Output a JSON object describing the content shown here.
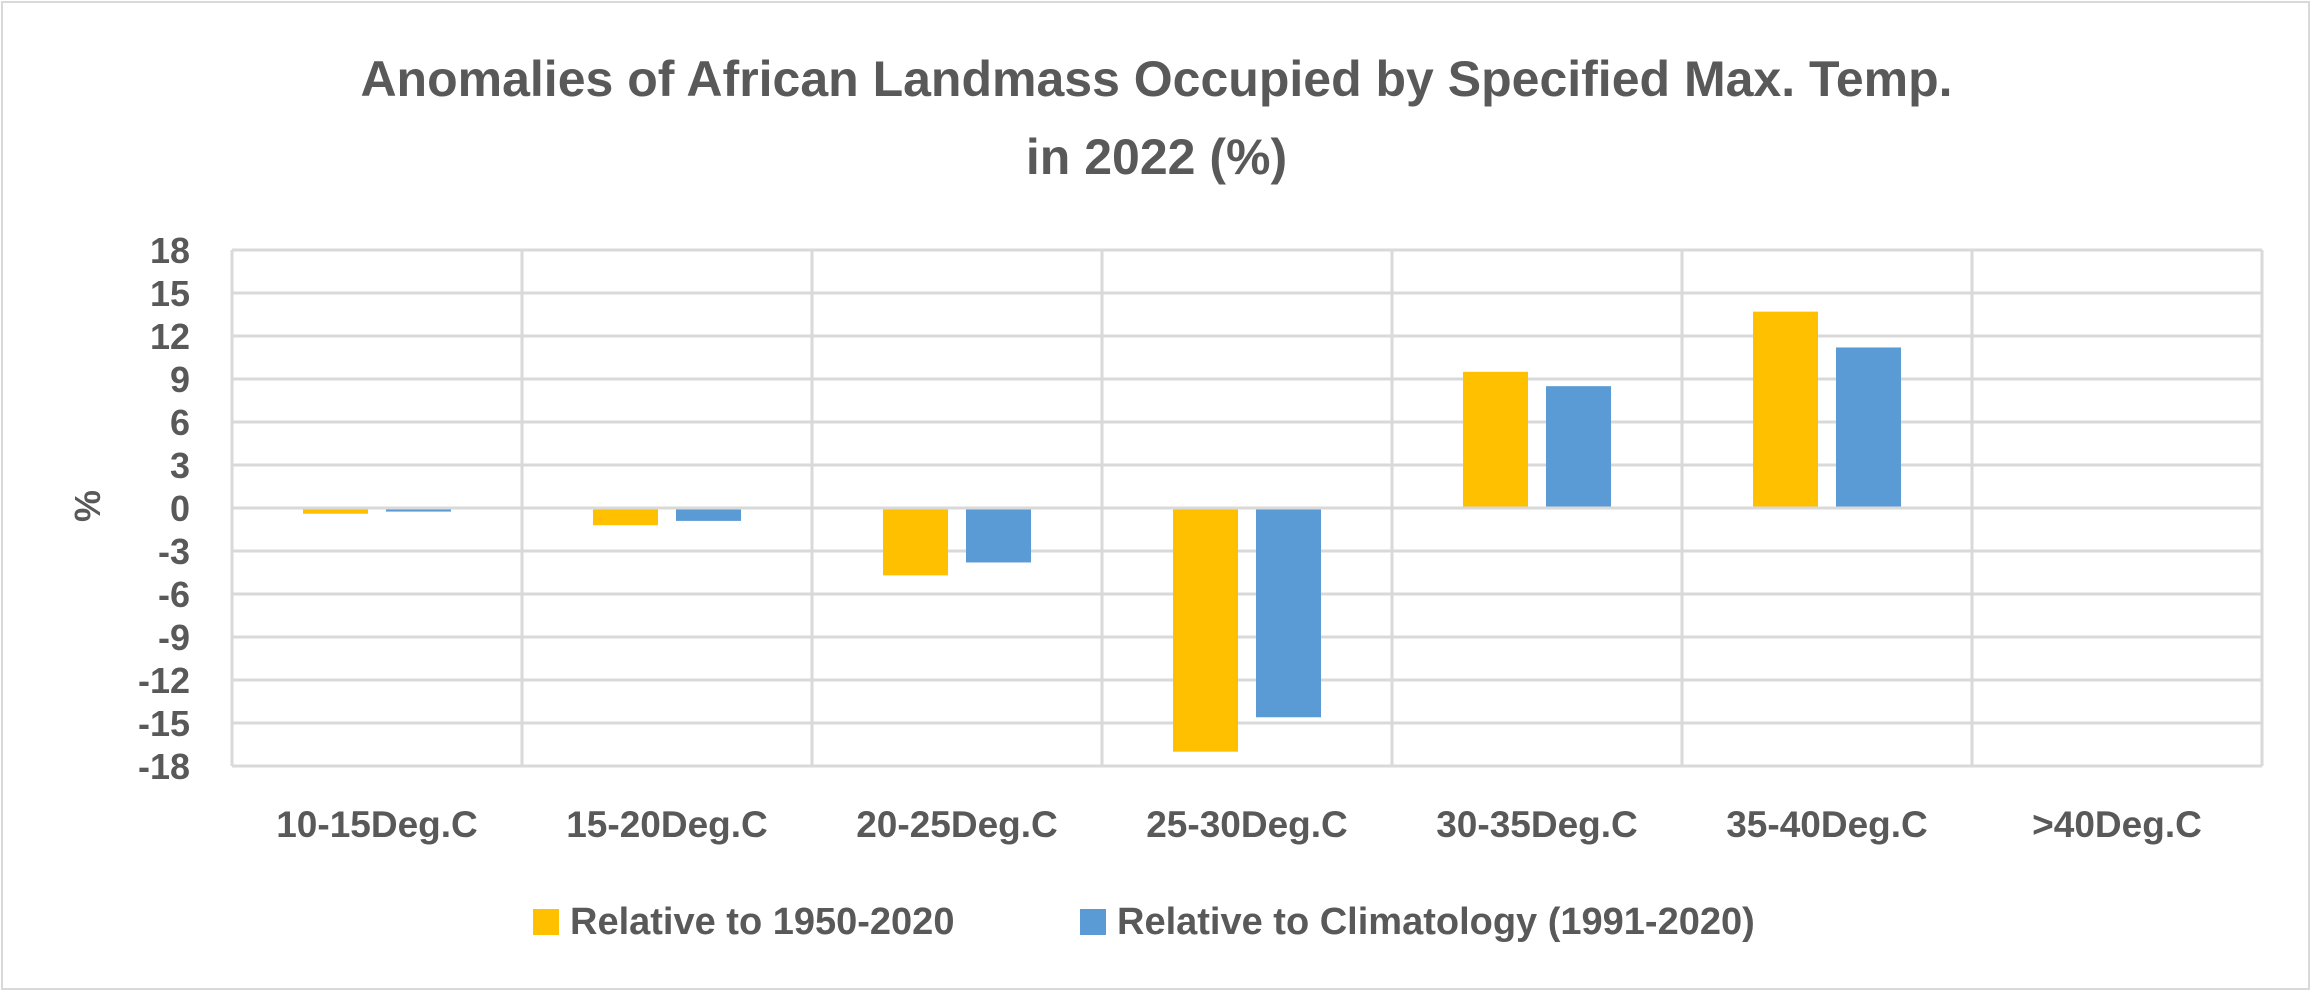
{
  "chart_data": {
    "type": "bar",
    "title_line1": "Anomalies of African Landmass Occupied by Specified Max. Temp.",
    "title_line2": "in 2022 (%)",
    "ylabel": "%",
    "xlabel": "",
    "ylim": [
      -18,
      18
    ],
    "yticks": [
      18,
      15,
      12,
      9,
      6,
      3,
      0,
      -3,
      -6,
      -9,
      -12,
      -15,
      -18
    ],
    "grid": true,
    "legend_position": "bottom",
    "categories": [
      "10-15Deg.C",
      "15-20Deg.C",
      "20-25Deg.C",
      "25-30Deg.C",
      "30-35Deg.C",
      "35-40Deg.C",
      ">40Deg.C"
    ],
    "series": [
      {
        "name": "Relative to 1950-2020",
        "color": "#ffc000",
        "values": [
          -0.4,
          -1.2,
          -4.7,
          -17.0,
          9.5,
          13.7,
          0
        ]
      },
      {
        "name": "Relative to Climatology (1991-2020)",
        "color": "#5b9bd5",
        "values": [
          -0.25,
          -0.9,
          -3.8,
          -14.6,
          8.5,
          11.2,
          0
        ]
      }
    ]
  }
}
